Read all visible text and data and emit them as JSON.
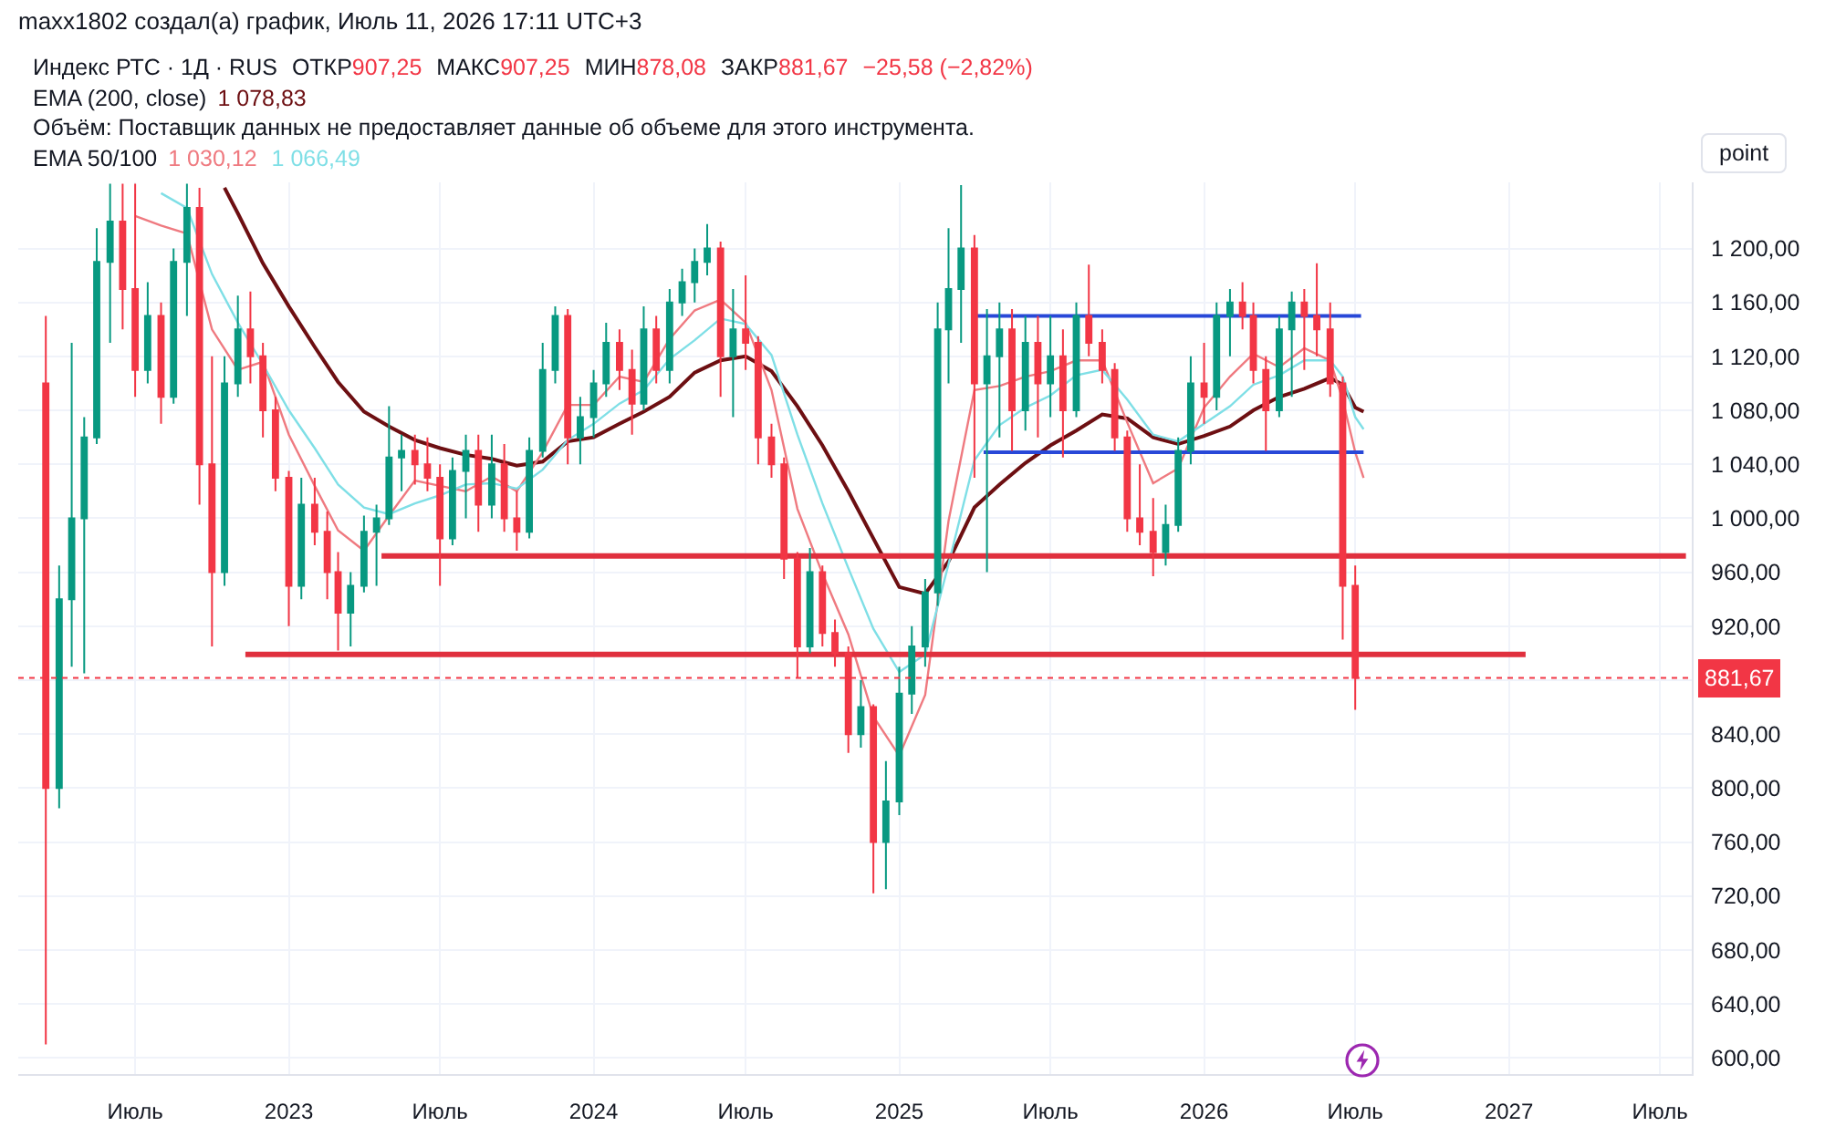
{
  "chart_data": {
    "type": "candlestick",
    "title": "Индекс РТС · 1Д · RUS",
    "ylabel": "point",
    "annotations": [
      "maxx1802 создал(а) график, Июль 11, 2026 17:11 UTC+3",
      "ОТКР",
      "907,25",
      "МАКС",
      "907,25",
      "МИН",
      "878,08",
      "ЗАКР",
      "881,67",
      "−25,58 (−2,82%)",
      "EMA (200, close)",
      "1 078,83",
      "Объём: Поставщик данных не предоставляет данные об объеме для этого инструмента.",
      "EMA 50/100",
      "1 030,12",
      "1 066,49"
    ],
    "x": [
      "2022-03-16",
      "2022-04-01",
      "2022-04-16",
      "2022-05-01",
      "2022-05-16",
      "2022-06-01",
      "2022-06-16",
      "2022-07-01",
      "2022-07-16",
      "2022-08-01",
      "2022-08-16",
      "2022-09-01",
      "2022-09-16",
      "2022-10-01",
      "2022-10-16",
      "2022-11-01",
      "2022-11-16",
      "2022-12-01",
      "2022-12-16",
      "2023-01-01",
      "2023-01-16",
      "2023-02-01",
      "2023-02-16",
      "2023-03-01",
      "2023-03-16",
      "2023-04-01",
      "2023-04-16",
      "2023-05-01",
      "2023-05-16",
      "2023-06-01",
      "2023-06-16",
      "2023-07-01",
      "2023-07-16",
      "2023-08-01",
      "2023-08-16",
      "2023-09-01",
      "2023-09-16",
      "2023-10-01",
      "2023-10-16",
      "2023-11-01",
      "2023-11-16",
      "2023-12-01",
      "2023-12-16",
      "2024-01-01",
      "2024-01-16",
      "2024-02-01",
      "2024-02-16",
      "2024-03-01",
      "2024-03-16",
      "2024-04-01",
      "2024-04-16",
      "2024-05-01",
      "2024-05-16",
      "2024-06-01",
      "2024-06-16",
      "2024-07-01",
      "2024-07-16",
      "2024-08-01",
      "2024-08-16",
      "2024-09-01",
      "2024-09-16",
      "2024-10-01",
      "2024-10-16",
      "2024-11-01",
      "2024-11-16",
      "2024-12-01",
      "2024-12-16",
      "2025-01-01",
      "2025-01-16",
      "2025-02-01",
      "2025-02-16",
      "2025-03-01",
      "2025-03-16",
      "2025-04-01",
      "2025-04-16",
      "2025-05-01",
      "2025-05-16",
      "2025-06-01",
      "2025-06-16",
      "2025-07-01",
      "2025-07-16",
      "2025-08-01",
      "2025-08-16",
      "2025-09-01",
      "2025-09-16",
      "2025-10-01",
      "2025-10-16",
      "2025-11-01",
      "2025-11-16",
      "2025-12-01",
      "2025-12-16",
      "2026-01-01",
      "2026-01-16",
      "2026-02-01",
      "2026-02-16",
      "2026-03-01",
      "2026-03-16",
      "2026-04-01",
      "2026-04-16",
      "2026-05-01",
      "2026-05-16",
      "2026-06-01",
      "2026-06-16",
      "2026-07-01"
    ],
    "ohlc": [
      [
        1100,
        1150,
        610,
        800
      ],
      [
        800,
        965,
        785,
        940
      ],
      [
        940,
        1130,
        890,
        1000
      ],
      [
        1000,
        1075,
        885,
        1060
      ],
      [
        1060,
        1215,
        1055,
        1190
      ],
      [
        1190,
        1248,
        1130,
        1220
      ],
      [
        1220,
        1248,
        1140,
        1170
      ],
      [
        1170,
        1248,
        1090,
        1110
      ],
      [
        1110,
        1175,
        1100,
        1150
      ],
      [
        1150,
        1160,
        1070,
        1090
      ],
      [
        1090,
        1200,
        1085,
        1190
      ],
      [
        1190,
        1248,
        1150,
        1230
      ],
      [
        1230,
        1245,
        1010,
        1040
      ],
      [
        1040,
        1120,
        905,
        960
      ],
      [
        960,
        1120,
        950,
        1100
      ],
      [
        1100,
        1165,
        1090,
        1140
      ],
      [
        1140,
        1168,
        1100,
        1120
      ],
      [
        1120,
        1130,
        1060,
        1080
      ],
      [
        1080,
        1090,
        1020,
        1030
      ],
      [
        1030,
        1035,
        920,
        950
      ],
      [
        950,
        1030,
        940,
        1010
      ],
      [
        1010,
        1030,
        980,
        990
      ],
      [
        990,
        1005,
        940,
        960
      ],
      [
        960,
        975,
        902,
        930
      ],
      [
        930,
        960,
        905,
        950
      ],
      [
        950,
        1002,
        945,
        990
      ],
      [
        990,
        1010,
        950,
        1000
      ],
      [
        1000,
        1083,
        995,
        1045
      ],
      [
        1045,
        1062,
        1020,
        1050
      ],
      [
        1050,
        1062,
        1025,
        1040
      ],
      [
        1040,
        1060,
        1020,
        1030
      ],
      [
        1030,
        1040,
        950,
        985
      ],
      [
        985,
        1045,
        980,
        1035
      ],
      [
        1035,
        1062,
        1000,
        1050
      ],
      [
        1050,
        1062,
        990,
        1010
      ],
      [
        1010,
        1062,
        1000,
        1040
      ],
      [
        1040,
        1055,
        990,
        1000
      ],
      [
        1000,
        1020,
        976,
        990
      ],
      [
        990,
        1060,
        985,
        1050
      ],
      [
        1050,
        1130,
        1045,
        1110
      ],
      [
        1110,
        1157,
        1100,
        1150
      ],
      [
        1150,
        1155,
        1040,
        1060
      ],
      [
        1060,
        1090,
        1040,
        1075
      ],
      [
        1075,
        1110,
        1060,
        1100
      ],
      [
        1100,
        1145,
        1090,
        1130
      ],
      [
        1130,
        1140,
        1095,
        1110
      ],
      [
        1110,
        1125,
        1062,
        1085
      ],
      [
        1085,
        1157,
        1080,
        1140
      ],
      [
        1140,
        1150,
        1100,
        1110
      ],
      [
        1110,
        1170,
        1100,
        1160
      ],
      [
        1160,
        1185,
        1150,
        1175
      ],
      [
        1175,
        1200,
        1160,
        1190
      ],
      [
        1190,
        1218,
        1180,
        1200
      ],
      [
        1200,
        1205,
        1090,
        1120
      ],
      [
        1120,
        1170,
        1075,
        1140
      ],
      [
        1140,
        1180,
        1110,
        1130
      ],
      [
        1130,
        1135,
        1040,
        1060
      ],
      [
        1060,
        1070,
        1030,
        1040
      ],
      [
        1040,
        1045,
        955,
        970
      ],
      [
        970,
        975,
        882,
        905
      ],
      [
        905,
        978,
        900,
        960
      ],
      [
        960,
        965,
        905,
        915
      ],
      [
        915,
        925,
        890,
        900
      ],
      [
        900,
        905,
        826,
        840
      ],
      [
        840,
        880,
        830,
        860
      ],
      [
        860,
        862,
        722,
        760
      ],
      [
        760,
        820,
        725,
        790
      ],
      [
        790,
        890,
        780,
        870
      ],
      [
        870,
        920,
        855,
        905
      ],
      [
        905,
        955,
        890,
        945
      ],
      [
        945,
        1160,
        935,
        1140
      ],
      [
        1140,
        1215,
        1100,
        1170
      ],
      [
        1170,
        1247,
        1130,
        1200
      ],
      [
        1200,
        1210,
        1030,
        1100
      ],
      [
        1100,
        1155,
        960,
        1120
      ],
      [
        1120,
        1160,
        1060,
        1140
      ],
      [
        1140,
        1155,
        1050,
        1080
      ],
      [
        1080,
        1150,
        1065,
        1130
      ],
      [
        1130,
        1150,
        1060,
        1100
      ],
      [
        1100,
        1150,
        1075,
        1120
      ],
      [
        1120,
        1140,
        1045,
        1080
      ],
      [
        1080,
        1160,
        1075,
        1150
      ],
      [
        1150,
        1188,
        1120,
        1130
      ],
      [
        1130,
        1140,
        1100,
        1110
      ],
      [
        1110,
        1115,
        1050,
        1060
      ],
      [
        1060,
        1065,
        990,
        1000
      ],
      [
        1000,
        1040,
        980,
        990
      ],
      [
        990,
        1015,
        957,
        975
      ],
      [
        975,
        1010,
        965,
        995
      ],
      [
        995,
        1060,
        990,
        1050
      ],
      [
        1050,
        1120,
        1040,
        1100
      ],
      [
        1100,
        1130,
        1070,
        1090
      ],
      [
        1090,
        1160,
        1080,
        1150
      ],
      [
        1150,
        1170,
        1120,
        1160
      ],
      [
        1160,
        1175,
        1140,
        1150
      ],
      [
        1150,
        1160,
        1100,
        1110
      ],
      [
        1110,
        1120,
        1050,
        1080
      ],
      [
        1080,
        1150,
        1075,
        1140
      ],
      [
        1140,
        1168,
        1090,
        1160
      ],
      [
        1160,
        1170,
        1110,
        1150
      ],
      [
        1150,
        1189,
        1120,
        1140
      ],
      [
        1140,
        1160,
        1090,
        1100
      ],
      [
        1100,
        1105,
        910,
        950
      ],
      [
        950,
        965,
        858,
        881.67
      ]
    ],
    "series": [
      {
        "type": "line",
        "color": "#6d0f12",
        "x": [
          "2022-10-16",
          "2022-11-01",
          "2022-12-01",
          "2023-01-01",
          "2023-02-01",
          "2023-03-01",
          "2023-04-01",
          "2023-05-01",
          "2023-06-01",
          "2023-07-01",
          "2023-08-01",
          "2023-09-01",
          "2023-10-01",
          "2023-11-01",
          "2023-12-01",
          "2024-01-01",
          "2024-02-01",
          "2024-03-01",
          "2024-04-01",
          "2024-05-01",
          "2024-06-01",
          "2024-07-01",
          "2024-08-01",
          "2024-09-01",
          "2024-10-01",
          "2024-11-01",
          "2024-12-01",
          "2025-01-01",
          "2025-02-01",
          "2025-03-01",
          "2025-04-01",
          "2025-05-01",
          "2025-06-01",
          "2025-07-01",
          "2025-08-01",
          "2025-09-01",
          "2025-10-01",
          "2025-11-01",
          "2025-12-01",
          "2026-01-01",
          "2026-02-01",
          "2026-03-01",
          "2026-04-01",
          "2026-05-01",
          "2026-06-01",
          "2026-06-16",
          "2026-07-01",
          "2026-07-11"
        ],
        "values": [
          1245,
          1226,
          1189,
          1157,
          1127,
          1101,
          1079,
          1068,
          1058,
          1052,
          1047,
          1044,
          1039,
          1042,
          1057,
          1060,
          1070,
          1079,
          1090,
          1108,
          1117,
          1120,
          1109,
          1083,
          1054,
          1020,
          985,
          949,
          944,
          968,
          1008,
          1025,
          1041,
          1054,
          1065,
          1077,
          1074,
          1060,
          1055,
          1061,
          1068,
          1080,
          1090,
          1096,
          1104,
          1099,
          1082,
          1079
        ]
      },
      {
        "type": "line",
        "color": "#ef7a80",
        "x": [
          "2022-07-01",
          "2022-08-01",
          "2022-09-01",
          "2022-10-01",
          "2022-11-01",
          "2022-12-01",
          "2023-01-01",
          "2023-02-01",
          "2023-03-01",
          "2023-04-01",
          "2023-05-01",
          "2023-06-01",
          "2023-07-01",
          "2023-08-01",
          "2023-09-01",
          "2023-10-01",
          "2023-11-01",
          "2023-12-01",
          "2024-01-01",
          "2024-02-01",
          "2024-03-01",
          "2024-04-01",
          "2024-05-01",
          "2024-06-01",
          "2024-07-01",
          "2024-08-01",
          "2024-09-01",
          "2024-10-01",
          "2024-11-01",
          "2024-12-01",
          "2025-01-01",
          "2025-02-01",
          "2025-03-01",
          "2025-04-01",
          "2025-05-01",
          "2025-06-01",
          "2025-07-01",
          "2025-08-01",
          "2025-09-01",
          "2025-10-01",
          "2025-11-01",
          "2025-12-01",
          "2026-01-01",
          "2026-02-01",
          "2026-03-01",
          "2026-04-01",
          "2026-05-01",
          "2026-06-01",
          "2026-06-16",
          "2026-07-01",
          "2026-07-11"
        ],
        "values": [
          1224,
          1217,
          1211,
          1140,
          1110,
          1116,
          1062,
          1024,
          991,
          976,
          1002,
          1028,
          1024,
          1020,
          1031,
          1020,
          1049,
          1084,
          1084,
          1105,
          1101,
          1133,
          1154,
          1162,
          1145,
          1095,
          1007,
          959,
          914,
          853,
          824,
          869,
          998,
          1095,
          1098,
          1105,
          1109,
          1117,
          1117,
          1071,
          1026,
          1037,
          1082,
          1105,
          1122,
          1112,
          1126,
          1117,
          1088,
          1049,
          1030
        ]
      },
      {
        "type": "line",
        "color": "#7fdfe6",
        "x": [
          "2022-08-01",
          "2022-09-01",
          "2022-10-01",
          "2022-11-01",
          "2022-12-01",
          "2023-01-01",
          "2023-02-01",
          "2023-03-01",
          "2023-04-01",
          "2023-05-01",
          "2023-06-01",
          "2023-07-01",
          "2023-08-01",
          "2023-09-01",
          "2023-10-01",
          "2023-11-01",
          "2023-12-01",
          "2024-01-01",
          "2024-02-01",
          "2024-03-01",
          "2024-04-01",
          "2024-05-01",
          "2024-06-01",
          "2024-07-01",
          "2024-08-01",
          "2024-09-01",
          "2024-10-01",
          "2024-11-01",
          "2024-12-01",
          "2025-01-01",
          "2025-02-01",
          "2025-03-01",
          "2025-04-01",
          "2025-05-01",
          "2025-06-01",
          "2025-07-01",
          "2025-08-01",
          "2025-09-01",
          "2025-10-01",
          "2025-11-01",
          "2025-12-01",
          "2026-01-01",
          "2026-02-01",
          "2026-03-01",
          "2026-04-01",
          "2026-05-01",
          "2026-06-01",
          "2026-06-16",
          "2026-07-01",
          "2026-07-11"
        ],
        "values": [
          1241,
          1230,
          1181,
          1145,
          1114,
          1080,
          1052,
          1025,
          1008,
          1003,
          1011,
          1017,
          1025,
          1026,
          1022,
          1036,
          1058,
          1070,
          1085,
          1095,
          1118,
          1132,
          1148,
          1144,
          1121,
          1062,
          1011,
          963,
          918,
          886,
          899,
          966,
          1043,
          1069,
          1082,
          1091,
          1106,
          1110,
          1088,
          1062,
          1057,
          1070,
          1083,
          1099,
          1106,
          1117,
          1117,
          1105,
          1075,
          1066
        ]
      },
      {
        "type": "line",
        "color": "#e0303e",
        "x": [
          "2023-04-22",
          "2027-08-01"
        ],
        "values": [
          972,
          972
        ]
      },
      {
        "type": "line",
        "color": "#e0303e",
        "x": [
          "2022-11-10",
          "2027-01-21"
        ],
        "values": [
          899,
          899
        ]
      },
      {
        "type": "line",
        "color": "#2848d8",
        "x": [
          "2025-04-04",
          "2026-07-08"
        ],
        "values": [
          1150,
          1150
        ]
      },
      {
        "type": "line",
        "color": "#2848d8",
        "x": [
          "2025-04-12",
          "2026-07-11"
        ],
        "values": [
          1049,
          1049
        ]
      }
    ],
    "xlim": [
      "2022-02-11",
      "2027-08-08"
    ],
    "ylim": [
      588,
      1249
    ],
    "xticks": [
      {
        "value": "2022-07-01",
        "label": "Июль"
      },
      {
        "value": "2023-01-01",
        "label": "2023"
      },
      {
        "value": "2023-07-01",
        "label": "Июль"
      },
      {
        "value": "2024-01-01",
        "label": "2024"
      },
      {
        "value": "2024-07-01",
        "label": "Июль"
      },
      {
        "value": "2025-01-01",
        "label": "2025"
      },
      {
        "value": "2025-07-01",
        "label": "Июль"
      },
      {
        "value": "2026-01-01",
        "label": "2026"
      },
      {
        "value": "2026-07-01",
        "label": "Июль"
      },
      {
        "value": "2027-01-01",
        "label": "2027"
      },
      {
        "value": "2027-07-01",
        "label": "Июль"
      }
    ],
    "yticks": [
      {
        "value": 600,
        "label": "600,00"
      },
      {
        "value": 640,
        "label": "640,00"
      },
      {
        "value": 680,
        "label": "680,00"
      },
      {
        "value": 720,
        "label": "720,00"
      },
      {
        "value": 760,
        "label": "760,00"
      },
      {
        "value": 800,
        "label": "800,00"
      },
      {
        "value": 840,
        "label": "840,00"
      },
      {
        "value": 880,
        "label": null
      },
      {
        "value": 920,
        "label": "920,00"
      },
      {
        "value": 960,
        "label": "960,00"
      },
      {
        "value": 1000,
        "label": "1 000,00"
      },
      {
        "value": 1040,
        "label": "1 040,00"
      },
      {
        "value": 1080,
        "label": "1 080,00"
      },
      {
        "value": 1120,
        "label": "1 120,00"
      },
      {
        "value": 1160,
        "label": "1 160,00"
      },
      {
        "value": 1200,
        "label": "1 200,00"
      }
    ],
    "ref_lines": [
      {
        "axis": "y",
        "value": 881.67,
        "label": "881,67",
        "color": "#f23645",
        "line_style": "dotted"
      }
    ],
    "grid": true
  }
}
